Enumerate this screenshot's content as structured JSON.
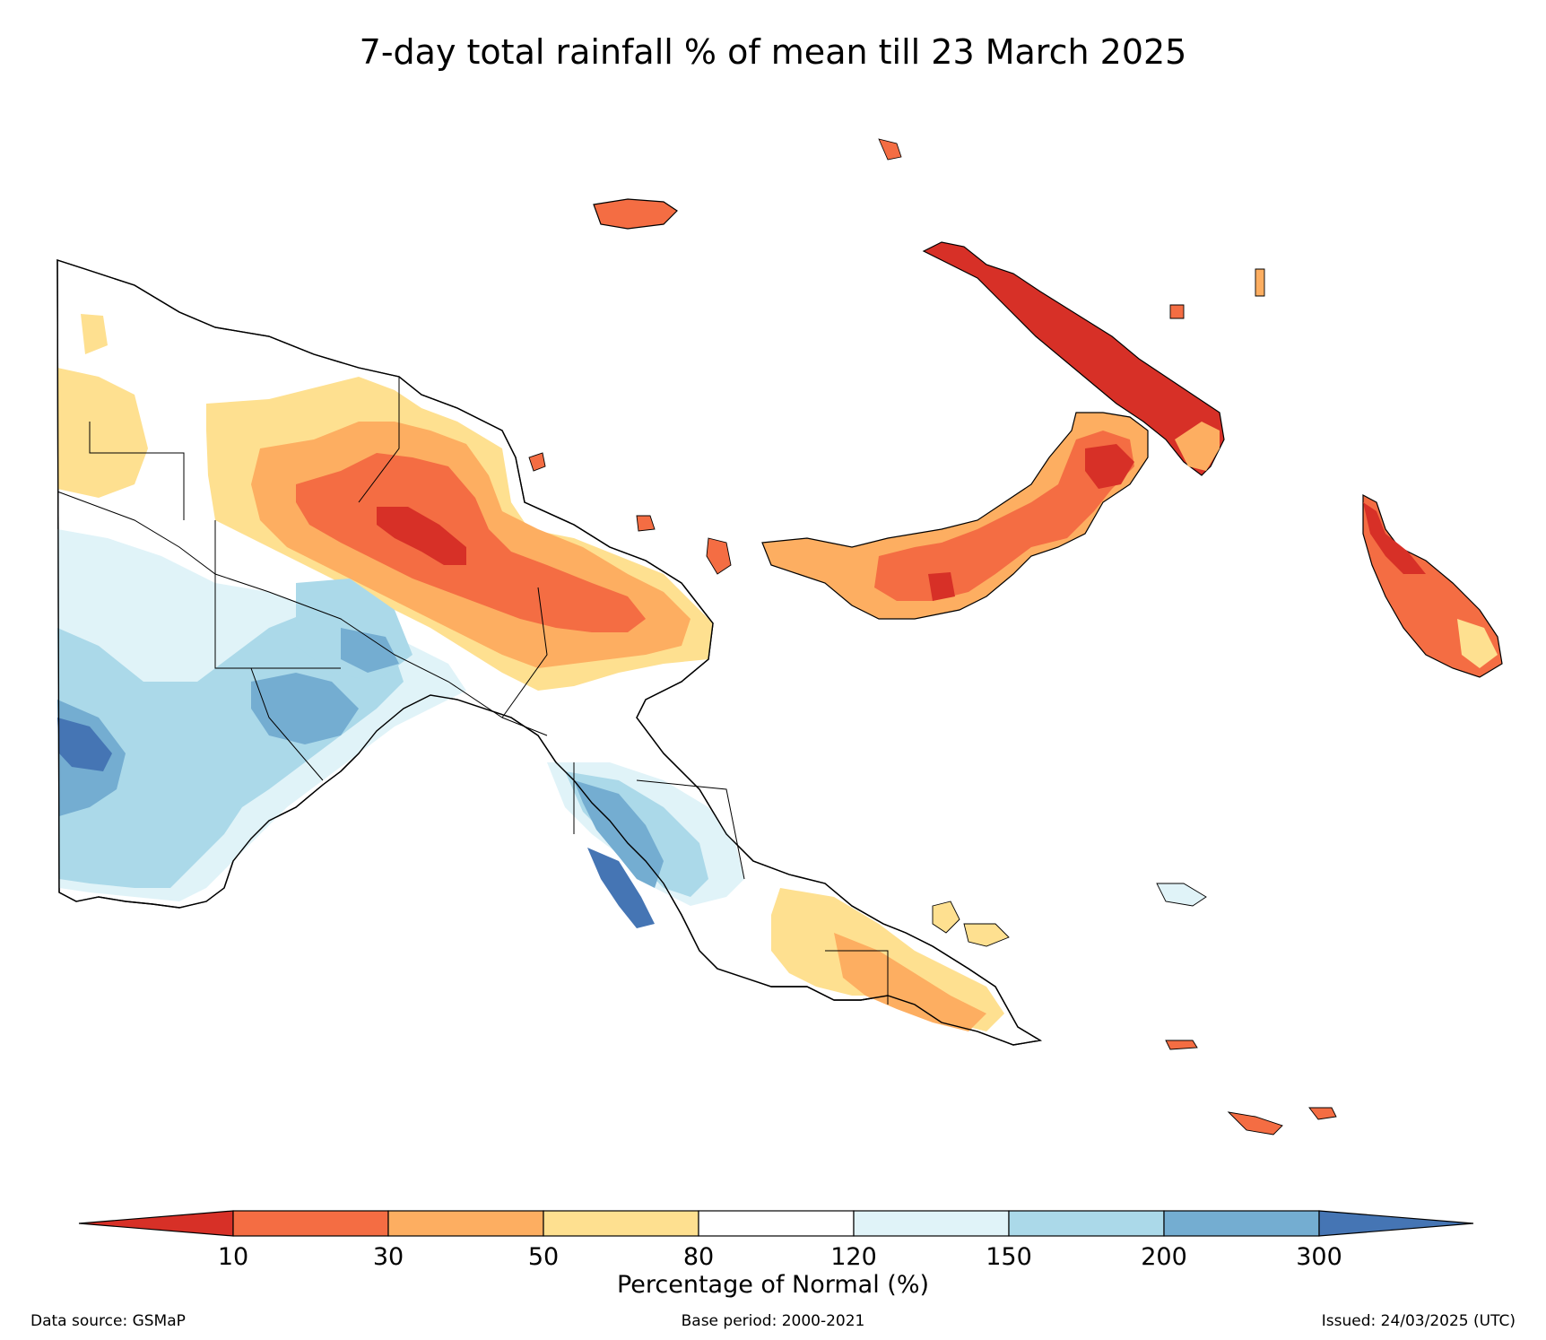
{
  "title": "7-day total rainfall % of mean till 23 March 2025",
  "colors": {
    "lt10": "#d73027",
    "c10_30": "#f46d43",
    "c30_50": "#fdae61",
    "c50_80": "#fee090",
    "c80_120": "#ffffff",
    "c120_150": "#e0f3f8",
    "c150_200": "#abd9e9",
    "c200_300": "#74add1",
    "gt300": "#4575b4"
  },
  "colorbar": {
    "ticks": [
      "10",
      "30",
      "50",
      "80",
      "120",
      "150",
      "200",
      "300"
    ],
    "label": "Percentage of Normal (%)"
  },
  "footer": {
    "source": "Data source: GSMaP",
    "base_period": "Base period: 2000-2021",
    "issued": "Issued: 24/03/2025 (UTC)"
  }
}
